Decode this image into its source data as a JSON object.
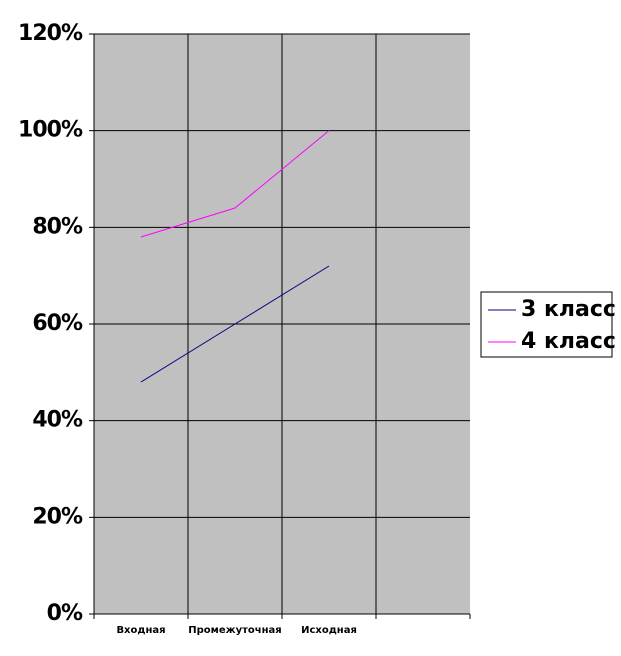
{
  "chart_data": {
    "type": "line",
    "categories": [
      "Входная",
      "Промежуточная",
      "Исходная",
      null
    ],
    "series": [
      {
        "name": "3 класс",
        "color": "#000080",
        "values": [
          48,
          60,
          72,
          null
        ]
      },
      {
        "name": "4 класс",
        "color": "#ff00ff",
        "values": [
          78,
          84,
          100,
          null
        ]
      }
    ],
    "ylim": [
      0,
      120
    ],
    "yticks": [
      {
        "value": 0,
        "label": "0%"
      },
      {
        "value": 20,
        "label": "20%"
      },
      {
        "value": 40,
        "label": "40%"
      },
      {
        "value": 60,
        "label": "60%"
      },
      {
        "value": 80,
        "label": "80%"
      },
      {
        "value": 100,
        "label": "100%"
      },
      {
        "value": 120,
        "label": "120%"
      }
    ],
    "grid": true,
    "legend": "right",
    "plot_color": "#c0c0c0"
  }
}
